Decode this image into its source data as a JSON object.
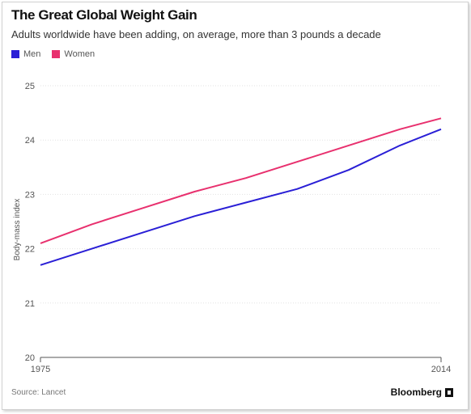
{
  "chart_data": {
    "type": "line",
    "title": "The Great Global Weight Gain",
    "subtitle": "Adults worldwide have been adding, on average, more than 3 pounds a decade",
    "ylabel": "Body-mass index",
    "xlabel": "",
    "xlim": [
      1975,
      2014
    ],
    "ylim": [
      20,
      25
    ],
    "x_ticks": [
      "1975",
      "2014"
    ],
    "y_ticks": [
      20,
      21,
      22,
      23,
      24,
      25
    ],
    "grid": true,
    "legend_position": "top-left",
    "x": [
      1975,
      1980,
      1985,
      1990,
      1995,
      2000,
      2005,
      2010,
      2014
    ],
    "series": [
      {
        "name": "Men",
        "color": "#2a1fd6",
        "values": [
          21.7,
          22.0,
          22.3,
          22.6,
          22.85,
          23.1,
          23.45,
          23.9,
          24.2
        ]
      },
      {
        "name": "Women",
        "color": "#e8306e",
        "values": [
          22.1,
          22.45,
          22.75,
          23.05,
          23.3,
          23.6,
          23.9,
          24.2,
          24.4
        ]
      }
    ]
  },
  "footer": {
    "source": "Source: Lancet",
    "brand": "Bloomberg"
  }
}
